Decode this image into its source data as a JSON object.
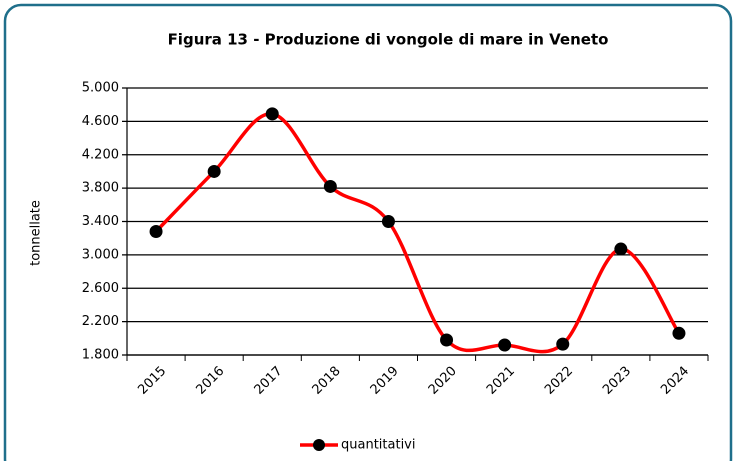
{
  "chart_data": {
    "type": "line",
    "title": "Figura 13 - Produzione di vongole di mare in Veneto",
    "ylabel": "tonnellate",
    "categories": [
      "2015",
      "2016",
      "2017",
      "2018",
      "2019",
      "2020",
      "2021",
      "2022",
      "2023",
      "2024"
    ],
    "series": [
      {
        "name": "quantitativi",
        "color": "#ff0000",
        "marker_color": "#000000",
        "values": [
          3280,
          4000,
          4690,
          3820,
          3400,
          1980,
          1920,
          1930,
          3070,
          2060
        ]
      }
    ],
    "ylim": [
      1800,
      5000
    ],
    "yticks": [
      {
        "value": 1800,
        "label": "1.800"
      },
      {
        "value": 2200,
        "label": "2.200"
      },
      {
        "value": 2600,
        "label": "2.600"
      },
      {
        "value": 3000,
        "label": "3.000"
      },
      {
        "value": 3400,
        "label": "3.400"
      },
      {
        "value": 3800,
        "label": "3.800"
      },
      {
        "value": 4200,
        "label": "4.200"
      },
      {
        "value": 4600,
        "label": "4.600"
      },
      {
        "value": 5000,
        "label": "5.000"
      }
    ],
    "grid": true,
    "smooth": true,
    "legend": "bottom"
  }
}
